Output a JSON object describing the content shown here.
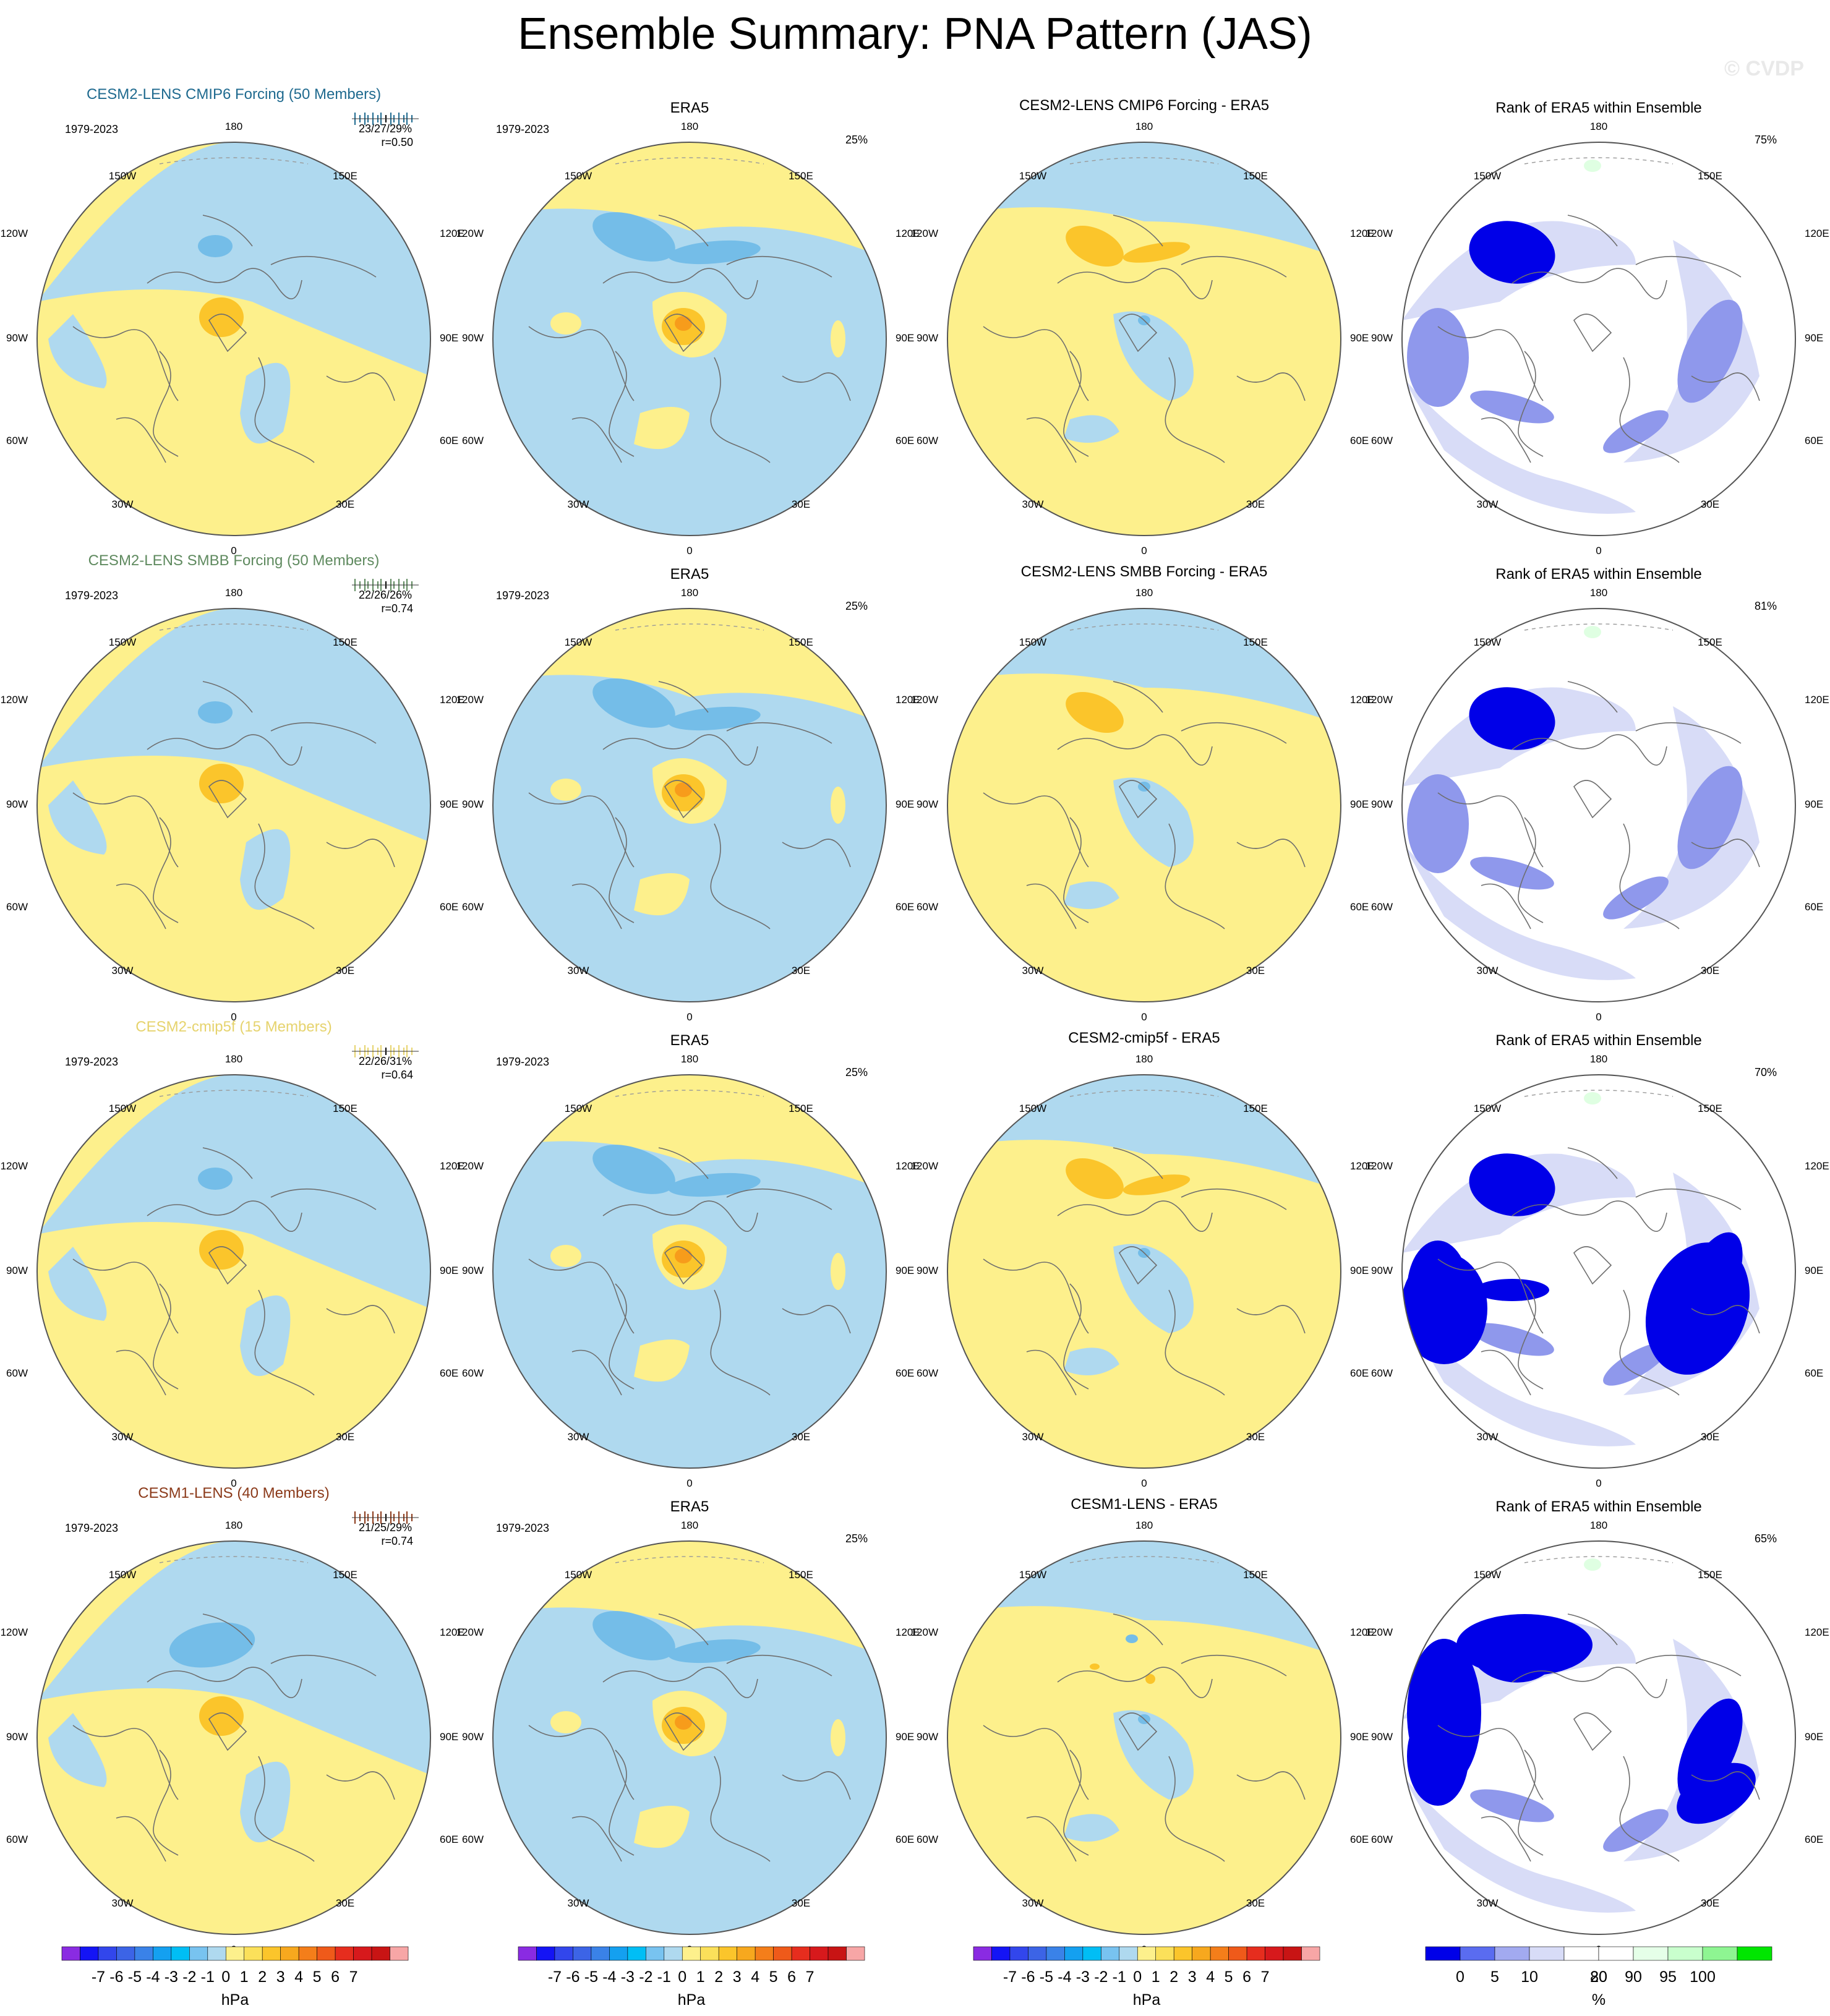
{
  "figure_title": "Ensemble Summary: PNA Pattern (JAS)",
  "watermark": "© CVDP",
  "colors": {
    "positive_fill": "#fdf08c",
    "negative_fill": "#afd9ef",
    "positive_core": "#fbc52b",
    "positive_inner": "#f79c1b",
    "negative_core": "#74bde8",
    "coastline": "#6e6e6e",
    "rank_white": "#ffffff",
    "rank_light": "#d8dcf7",
    "rank_mid": "#8f98ec",
    "rank_dark": "#0000e8",
    "rank_green": "#dfffe2"
  },
  "map_labels": {
    "lon": [
      "180",
      "150W",
      "150E",
      "120W",
      "120E",
      "90W",
      "90E",
      "60W",
      "60E",
      "30W",
      "30E",
      "0"
    ]
  },
  "rows": [
    {
      "model_title": "CESM2-LENS CMIP6 Forcing (50 Members)",
      "model_title_color": "#1f6a8f",
      "period": "1979-2023",
      "stats": "23/27/29%",
      "r_value": "r=0.50",
      "era5_title": "ERA5",
      "era5_period": "1979-2023",
      "era5_pct": "25%",
      "diff_title": "CESM2-LENS CMIP6 Forcing - ERA5",
      "rank_title": "Rank of ERA5 within Ensemble",
      "rank_pct": "75%"
    },
    {
      "model_title": "CESM2-LENS SMBB Forcing (50 Members)",
      "model_title_color": "#5f8a5f",
      "period": "1979-2023",
      "stats": "22/26/26%",
      "r_value": "r=0.74",
      "era5_title": "ERA5",
      "era5_period": "1979-2023",
      "era5_pct": "25%",
      "diff_title": "CESM2-LENS SMBB Forcing - ERA5",
      "rank_title": "Rank of ERA5 within Ensemble",
      "rank_pct": "81%"
    },
    {
      "model_title": "CESM2-cmip5f (15 Members)",
      "model_title_color": "#e6d36d",
      "period": "1979-2023",
      "stats": "22/26/31%",
      "r_value": "r=0.64",
      "era5_title": "ERA5",
      "era5_period": "1979-2023",
      "era5_pct": "25%",
      "diff_title": "CESM2-cmip5f - ERA5",
      "rank_title": "Rank of ERA5 within Ensemble",
      "rank_pct": "70%"
    },
    {
      "model_title": "CESM1-LENS (40 Members)",
      "model_title_color": "#8b3a1a",
      "period": "1979-2023",
      "stats": "21/25/29%",
      "r_value": "r=0.74",
      "era5_title": "ERA5",
      "era5_period": "1979-2023",
      "era5_pct": "25%",
      "diff_title": "CESM1-LENS - ERA5",
      "rank_title": "Rank of ERA5 within Ensemble",
      "rank_pct": "65%"
    }
  ],
  "chart_data": {
    "type": "heatmap",
    "description_of_panels": [
      "model ensemble mean",
      "ERA5",
      "model minus ERA5",
      "rank of ERA5 within ensemble"
    ],
    "colorbar_hpa": {
      "unit": "hPa",
      "labels": [
        "-7",
        "-6",
        "-5",
        "-4",
        "-3",
        "-2",
        "-1",
        "0",
        "1",
        "2",
        "3",
        "4",
        "5",
        "6",
        "7"
      ],
      "colors": [
        "#8a2be2",
        "#1414f5",
        "#3246ec",
        "#3c64e6",
        "#3a82e8",
        "#14a0f0",
        "#00bef5",
        "#78c3f0",
        "#afd9ef",
        "#fdf08c",
        "#fbe05a",
        "#fbc52b",
        "#f7a81e",
        "#f47e1a",
        "#ef5a1a",
        "#e62d1e",
        "#d7191c",
        "#c81414",
        "#f7a6a6"
      ]
    },
    "colorbar_rank": {
      "unit": "%",
      "labels": [
        "0",
        "5",
        "10",
        "20",
        "80",
        "90",
        "95",
        "100"
      ],
      "colors": [
        "#0000e8",
        "#5a6cf0",
        "#a2aaf0",
        "#d8dcf7",
        "#ffffff",
        "#ffffff",
        "#e5ffe8",
        "#c9ffcd",
        "#8ef592",
        "#00e600"
      ]
    }
  }
}
